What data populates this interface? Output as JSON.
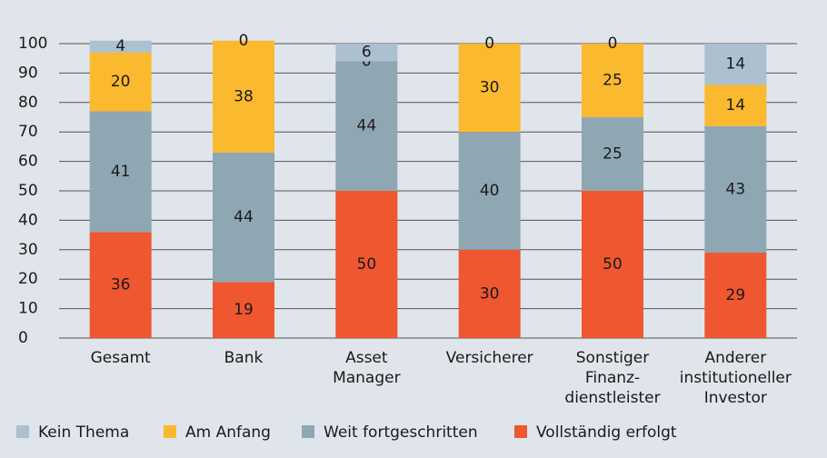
{
  "chart_data": {
    "type": "stacked-bar",
    "categories": [
      [
        "Gesamt"
      ],
      [
        "Bank"
      ],
      [
        "Asset",
        "Manager"
      ],
      [
        "Versicherer"
      ],
      [
        "Sonstiger",
        "Finanz-",
        "dienstleister"
      ],
      [
        "Anderer",
        "institutioneller",
        "Investor"
      ]
    ],
    "series": [
      {
        "name": "Vollständig erfolgt",
        "color": "#ee5730",
        "values": [
          36,
          19,
          50,
          30,
          50,
          29
        ]
      },
      {
        "name": "Weit fortgeschritten",
        "color": "#8fa7b3",
        "values": [
          41,
          44,
          44,
          40,
          25,
          43
        ]
      },
      {
        "name": "Am Anfang",
        "color": "#fbb92f",
        "values": [
          20,
          38,
          0,
          30,
          25,
          14
        ]
      },
      {
        "name": "Kein Thema",
        "color": "#adc0d0",
        "values": [
          4,
          0,
          6,
          0,
          0,
          14
        ]
      }
    ],
    "legend_order": [
      3,
      2,
      1,
      0
    ],
    "ylim": [
      0,
      100
    ],
    "yticks": [
      0,
      10,
      20,
      30,
      40,
      50,
      60,
      70,
      80,
      90,
      100
    ],
    "grid": true
  }
}
